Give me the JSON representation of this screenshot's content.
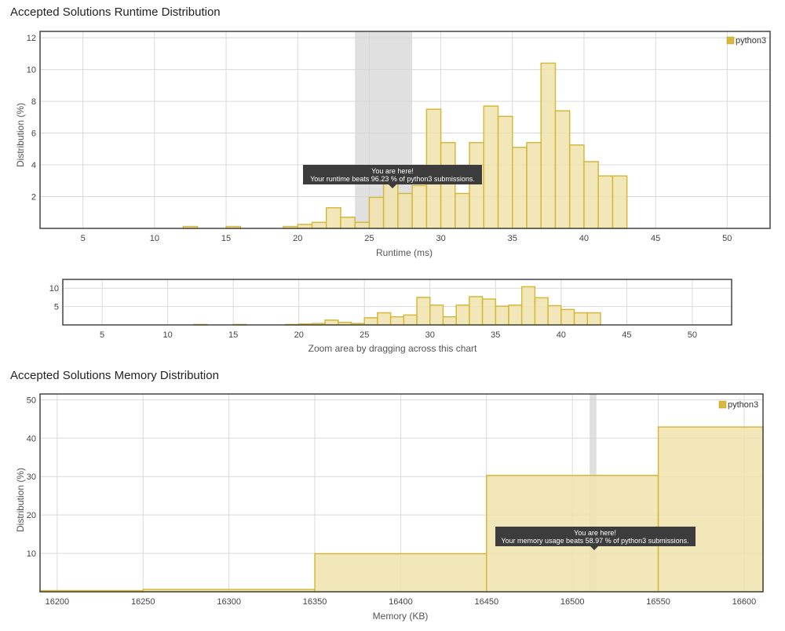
{
  "runtime": {
    "section_title": "Accepted Solutions Runtime Distribution",
    "legend": "python3",
    "tooltip": {
      "line1": "You are here!",
      "line2": "Your runtime beats 96.23 % of python3 submissions."
    },
    "zoom_caption": "Zoom area by dragging across this chart"
  },
  "memory": {
    "section_title": "Accepted Solutions Memory Distribution",
    "legend": "python3",
    "tooltip": {
      "line1": "You are here!",
      "line2": "Your memory usage beats 58.97 % of python3 submissions."
    }
  },
  "colors": {
    "bar_fill": "#efe3ab",
    "bar_stroke": "#d4b93c",
    "grid": "#d9d9d9",
    "frame": "#444444",
    "highlight": "#d5d5d5",
    "tooltip_bg": "#3c3c3c",
    "legend_swatch": "#d9b93c"
  },
  "chart_data": [
    {
      "type": "bar",
      "title": "Accepted Solutions Runtime Distribution",
      "xlabel": "Runtime (ms)",
      "ylabel": "Distribution (%)",
      "xlim": [
        2,
        53
      ],
      "ylim": [
        0,
        12.4
      ],
      "xticks": [
        5,
        10,
        15,
        20,
        25,
        30,
        35,
        40,
        45,
        50
      ],
      "yticks": [
        2,
        4,
        6,
        8,
        10,
        12
      ],
      "bin_width": 1,
      "highlight_range": [
        24,
        28
      ],
      "legend_position": "top-right",
      "grid": true,
      "series": [
        {
          "name": "python3",
          "x": [
            12,
            15,
            19,
            20,
            21,
            22,
            23,
            24,
            25,
            26,
            27,
            28,
            29,
            30,
            31,
            32,
            33,
            34,
            35,
            36,
            37,
            38,
            39,
            40,
            41,
            42,
            43
          ],
          "values": [
            0.12,
            0.12,
            0.12,
            0.25,
            0.38,
            1.3,
            0.7,
            0.38,
            1.95,
            3.3,
            2.2,
            2.7,
            7.5,
            5.4,
            2.2,
            5.4,
            7.7,
            7.05,
            5.1,
            5.4,
            10.4,
            7.4,
            5.25,
            4.2,
            3.3,
            3.3,
            0.0
          ]
        }
      ]
    },
    {
      "type": "bar",
      "title": "",
      "xlabel": "Zoom area by dragging across this chart",
      "ylabel": "",
      "xlim": [
        2,
        53
      ],
      "ylim": [
        0,
        12.4
      ],
      "xticks": [
        5,
        10,
        15,
        20,
        25,
        30,
        35,
        40,
        45,
        50
      ],
      "yticks": [
        5,
        10
      ],
      "bin_width": 1,
      "series": [
        {
          "name": "python3",
          "x": [
            12,
            15,
            19,
            20,
            21,
            22,
            23,
            24,
            25,
            26,
            27,
            28,
            29,
            30,
            31,
            32,
            33,
            34,
            35,
            36,
            37,
            38,
            39,
            40,
            41,
            42,
            43
          ],
          "values": [
            0.12,
            0.12,
            0.12,
            0.25,
            0.38,
            1.3,
            0.7,
            0.38,
            1.95,
            3.3,
            2.2,
            2.7,
            7.5,
            5.4,
            2.2,
            5.4,
            7.7,
            7.05,
            5.1,
            5.4,
            10.4,
            7.4,
            5.25,
            4.2,
            3.3,
            3.3,
            0.0
          ]
        }
      ]
    },
    {
      "type": "bar",
      "title": "Accepted Solutions Memory Distribution",
      "xlabel": "Memory (KB)",
      "ylabel": "Distribution (%)",
      "xlim": [
        16190,
        16611
      ],
      "ylim": [
        0,
        51.5
      ],
      "xticks": [
        16200,
        16250,
        16300,
        16350,
        16400,
        16450,
        16500,
        16550,
        16600
      ],
      "yticks": [
        10,
        20,
        30,
        40,
        50
      ],
      "highlight_range": [
        16510,
        16514
      ],
      "legend_position": "top-right",
      "grid": true,
      "series": [
        {
          "name": "python3",
          "bins": [
            {
              "x0": 16190,
              "x1": 16250,
              "value": 0.3
            },
            {
              "x0": 16250,
              "x1": 16350,
              "value": 0.6
            },
            {
              "x0": 16350,
              "x1": 16450,
              "value": 9.9
            },
            {
              "x0": 16450,
              "x1": 16550,
              "value": 30.3
            },
            {
              "x0": 16550,
              "x1": 16611,
              "value": 42.9
            }
          ]
        }
      ]
    }
  ]
}
